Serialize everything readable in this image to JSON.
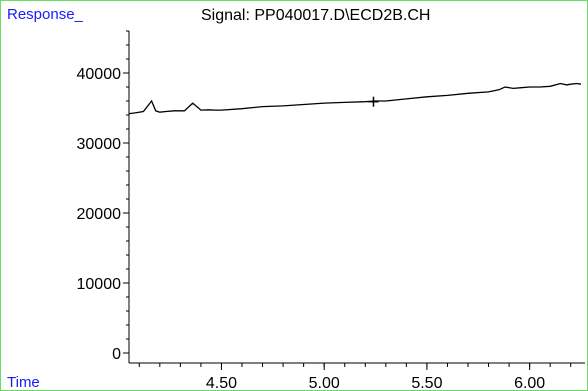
{
  "window": {
    "y_label": "Response_",
    "x_label": "Time"
  },
  "chart_data": {
    "type": "line",
    "title": "Signal: PP040017.D\\ECD2B.CH",
    "xlabel": "Time",
    "ylabel": "Response_",
    "xlim": [
      4.05,
      6.25
    ],
    "ylim": [
      0,
      40000
    ],
    "x_ticks": [
      4.5,
      5.0,
      5.5,
      6.0
    ],
    "x_tick_labels": [
      "4.50",
      "5.00",
      "5.50",
      "6.00"
    ],
    "y_ticks": [
      0,
      10000,
      20000,
      30000,
      40000
    ],
    "y_tick_labels": [
      "0",
      "10000",
      "20000",
      "30000",
      "40000"
    ],
    "series": [
      {
        "color": "#000000",
        "x": [
          4.05,
          4.08,
          4.12,
          4.16,
          4.18,
          4.2,
          4.23,
          4.27,
          4.32,
          4.36,
          4.4,
          4.44,
          4.47,
          4.5,
          4.6,
          4.7,
          4.8,
          4.9,
          5.0,
          5.1,
          5.2,
          5.25,
          5.3,
          5.4,
          5.5,
          5.6,
          5.7,
          5.8,
          5.85,
          5.88,
          5.92,
          5.96,
          6.0,
          6.05,
          6.1,
          6.15,
          6.18,
          6.2,
          6.23,
          6.25
        ],
        "y": [
          34200,
          34300,
          34500,
          36000,
          34600,
          34400,
          34500,
          34600,
          34600,
          35700,
          34700,
          34750,
          34700,
          34700,
          34900,
          35200,
          35300,
          35500,
          35700,
          35800,
          35900,
          36000,
          36000,
          36300,
          36600,
          36800,
          37100,
          37300,
          37600,
          38000,
          37800,
          37900,
          38000,
          38000,
          38100,
          38500,
          38300,
          38400,
          38500,
          38400
        ]
      }
    ],
    "cursor": {
      "x": 5.24,
      "y": 35900
    }
  }
}
